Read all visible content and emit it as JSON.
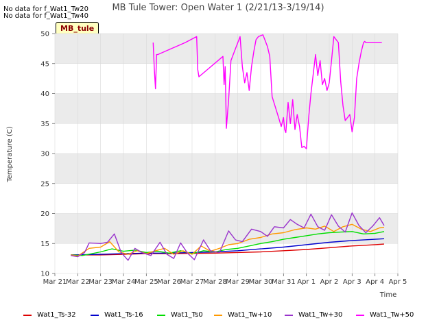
{
  "chart_data": {
    "type": "line",
    "title": "MB Tule Tower: Open Water 1 (2/21/13-3/19/14)",
    "xlabel": "Time",
    "ylabel": "Temperature (C)",
    "ylim": [
      10,
      50
    ],
    "xlim": [
      0,
      15
    ],
    "yticks": [
      10,
      15,
      20,
      25,
      30,
      35,
      40,
      45,
      50
    ],
    "xtick_labels": [
      "Mar 21",
      "Mar 22",
      "Mar 23",
      "Mar 24",
      "Mar 25",
      "Mar 26",
      "Mar 27",
      "Mar 28",
      "Mar 29",
      "Mar 30",
      "Mar 31",
      "Apr 1",
      "Apr 2",
      "Apr 3",
      "Apr 4",
      "Apr 5"
    ],
    "no_data_notes": [
      "No data for f_Wat1_Tw20",
      "No data for f_Wat1_Tw40"
    ],
    "site_label": "MB_tule",
    "series": [
      {
        "name": "Wat1_Ts-32",
        "color": "#dd0000",
        "x": [
          0.7,
          2,
          3,
          4,
          5,
          6,
          7,
          8,
          9,
          10,
          11,
          12,
          13,
          13.5,
          14,
          14.4
        ],
        "y": [
          13.1,
          13.1,
          13.2,
          13.3,
          13.3,
          13.35,
          13.4,
          13.5,
          13.6,
          13.8,
          14.0,
          14.3,
          14.6,
          14.7,
          14.8,
          14.9
        ]
      },
      {
        "name": "Wat1_Ts-16",
        "color": "#0000cc",
        "x": [
          0.7,
          2,
          3,
          4,
          5,
          6,
          7,
          8,
          9,
          10,
          11,
          12,
          13,
          14,
          14.4
        ],
        "y": [
          13.1,
          13.2,
          13.3,
          13.4,
          13.4,
          13.5,
          13.6,
          13.8,
          14.1,
          14.4,
          14.8,
          15.2,
          15.5,
          15.7,
          15.8
        ]
      },
      {
        "name": "Wat1_Ts0",
        "color": "#00dd00",
        "x": [
          0.7,
          1.2,
          2,
          2.5,
          3,
          3.5,
          4,
          4.5,
          5,
          5.5,
          6,
          6.5,
          7,
          7.5,
          8,
          8.5,
          9,
          9.5,
          10,
          10.5,
          11,
          11.5,
          12,
          12.5,
          13,
          13.5,
          14,
          14.4
        ],
        "y": [
          13.1,
          13.0,
          13.6,
          14.1,
          13.7,
          13.9,
          13.5,
          13.7,
          13.4,
          13.8,
          13.3,
          13.8,
          13.6,
          14.0,
          14.2,
          14.6,
          15.0,
          15.3,
          15.7,
          16.0,
          16.3,
          16.6,
          16.8,
          16.9,
          17.0,
          16.6,
          16.7,
          17.0
        ]
      },
      {
        "name": "Wat1_Tw+10",
        "color": "#ff9900",
        "x": [
          0.7,
          1,
          1.5,
          2,
          2.4,
          2.8,
          3.2,
          3.6,
          4,
          4.4,
          4.8,
          5.2,
          5.6,
          6,
          6.4,
          6.8,
          7.2,
          7.6,
          8,
          8.5,
          9,
          9.5,
          10,
          10.5,
          11,
          11.4,
          11.8,
          12.2,
          12.6,
          13,
          13.4,
          13.8,
          14.2,
          14.4
        ],
        "y": [
          13.1,
          12.9,
          14.2,
          14.4,
          15.3,
          13.6,
          13.2,
          13.8,
          13.3,
          13.8,
          14.2,
          13.2,
          13.8,
          13.2,
          14.6,
          13.7,
          14.2,
          14.8,
          15.0,
          15.7,
          16.0,
          16.6,
          16.8,
          17.3,
          17.6,
          17.4,
          17.9,
          17.0,
          17.8,
          18.2,
          17.4,
          17.0,
          17.6,
          17.7
        ]
      },
      {
        "name": "Wat1_Tw+30",
        "color": "#9933cc",
        "x": [
          0.7,
          1,
          1.3,
          1.5,
          2,
          2.3,
          2.6,
          2.9,
          3.2,
          3.5,
          3.8,
          4.2,
          4.6,
          4.9,
          5.2,
          5.5,
          5.8,
          6.1,
          6.5,
          6.8,
          7.2,
          7.6,
          7.9,
          8.2,
          8.6,
          9,
          9.3,
          9.6,
          10,
          10.3,
          10.6,
          10.9,
          11.2,
          11.5,
          11.8,
          12.1,
          12.4,
          12.7,
          13,
          13.3,
          13.6,
          13.9,
          14.2,
          14.4
        ],
        "y": [
          13.0,
          12.8,
          13.5,
          15.1,
          15.0,
          15.2,
          16.6,
          13.5,
          12.2,
          14.2,
          13.5,
          13.0,
          15.2,
          13.2,
          12.5,
          15.1,
          13.4,
          12.3,
          15.6,
          13.8,
          13.5,
          17.1,
          15.6,
          15.3,
          17.4,
          17.0,
          16.2,
          17.8,
          17.6,
          19.0,
          18.2,
          17.6,
          19.9,
          17.8,
          17.2,
          19.8,
          17.9,
          16.9,
          20.1,
          18.0,
          16.8,
          17.9,
          19.3,
          18.0
        ]
      },
      {
        "name": "Wat1_Tw+50",
        "color": "#ff00ff",
        "x": [
          4.3,
          4.35,
          4.4,
          4.45,
          4.5,
          5.7,
          6.2,
          6.25,
          6.3,
          7.35,
          7.4,
          7.45,
          7.5,
          7.6,
          7.7,
          8.1,
          8.2,
          8.3,
          8.4,
          8.5,
          8.6,
          8.7,
          8.8,
          8.9,
          9.1,
          9.2,
          9.3,
          9.4,
          9.5,
          9.8,
          9.9,
          10,
          10.05,
          10.1,
          10.2,
          10.3,
          10.4,
          10.5,
          10.6,
          10.7,
          10.8,
          10.9,
          11,
          11.1,
          11.2,
          11.4,
          11.5,
          11.6,
          11.7,
          11.8,
          11.9,
          12,
          12.1,
          12.2,
          12.3,
          12.4,
          12.5,
          12.6,
          12.7,
          12.9,
          13,
          13.1,
          13.2,
          13.3,
          13.4,
          13.5,
          13.55,
          13.6,
          13.7,
          14.1,
          14.2,
          14.3
        ],
        "y": [
          48.5,
          44.0,
          40.8,
          46.5,
          46.5,
          48.5,
          49.5,
          44.0,
          42.8,
          46.2,
          41.5,
          44.5,
          34.2,
          39.0,
          45.5,
          49.5,
          44.5,
          41.8,
          43.5,
          40.5,
          44.5,
          47.0,
          49.0,
          49.5,
          49.8,
          48.8,
          47.8,
          46.2,
          39.5,
          35.8,
          34.5,
          36.0,
          34.0,
          33.5,
          38.5,
          35.0,
          39.0,
          34.0,
          36.5,
          34.5,
          31.0,
          31.2,
          30.8,
          36.0,
          40.0,
          46.5,
          43.0,
          45.5,
          41.5,
          42.5,
          40.5,
          41.8,
          45.5,
          49.5,
          49.0,
          48.5,
          42.0,
          38.0,
          35.5,
          36.5,
          33.6,
          36.0,
          42.5,
          45.0,
          47.0,
          48.5,
          48.7,
          48.5,
          48.5,
          48.5,
          48.5,
          48.5
        ]
      }
    ]
  }
}
